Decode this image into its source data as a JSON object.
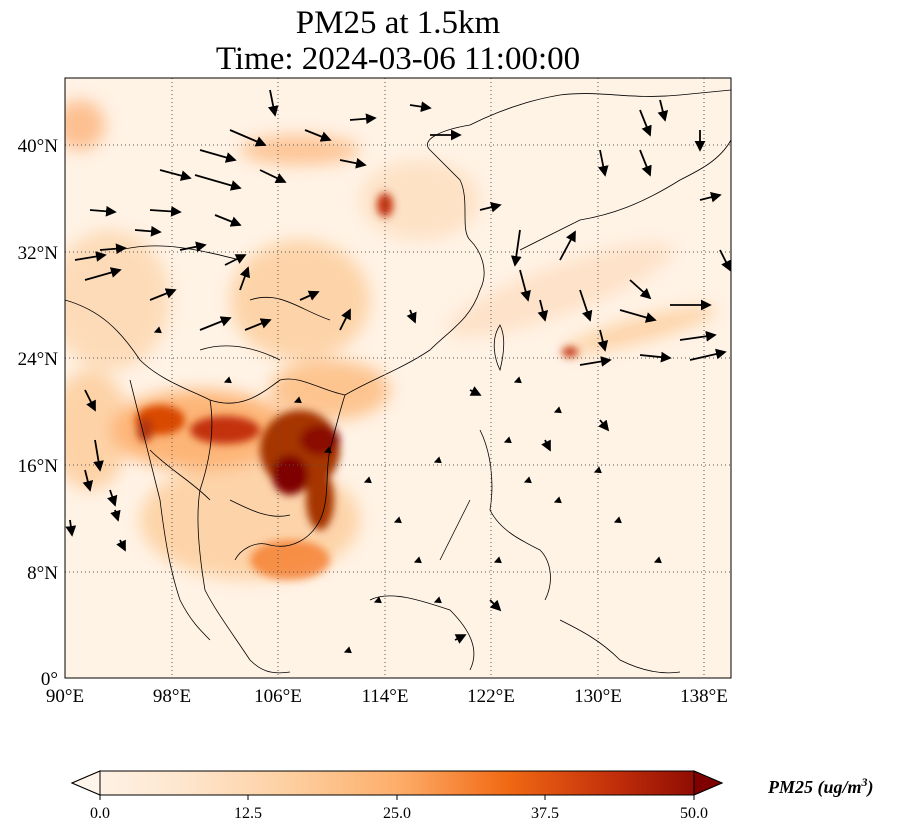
{
  "title_line1": "PM25 at 1.5km",
  "title_line2": "Time: 2024-03-06 11:00:00",
  "lat_ticks": [
    "40°N",
    "32°N",
    "24°N",
    "16°N",
    "8°N",
    "0°"
  ],
  "lon_ticks": [
    "90°E",
    "98°E",
    "106°E",
    "114°E",
    "122°E",
    "130°E",
    "138°E"
  ],
  "colorbar": {
    "ticks": [
      "0.0",
      "12.5",
      "25.0",
      "37.5",
      "50.0"
    ],
    "label_main": "PM25 (ug/m",
    "label_sup": "3",
    "label_close": ")",
    "colors": [
      "#fff5eb",
      "#fdd9b4",
      "#fda762",
      "#f3701b",
      "#d94801",
      "#a63603",
      "#7f0000"
    ]
  },
  "map": {
    "lon_range": [
      90,
      140
    ],
    "lat_range": [
      0,
      45
    ],
    "land_color": "#fff1e2",
    "gridline_color": "#555555",
    "coastline_color": "#000000"
  }
}
